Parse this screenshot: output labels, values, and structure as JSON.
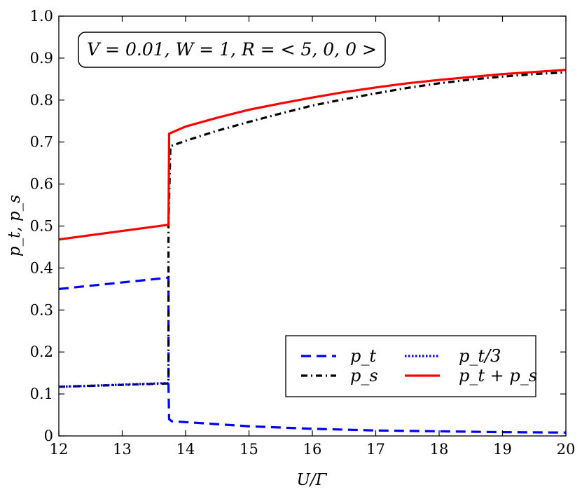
{
  "chart_data": {
    "type": "line",
    "xlabel": "U/Γ",
    "ylabel": "p_t, p_s",
    "xlim": [
      12,
      20
    ],
    "ylim": [
      0,
      1.0
    ],
    "xticks": [
      12,
      13,
      14,
      15,
      16,
      17,
      18,
      19,
      20
    ],
    "yticks": [
      0,
      0.1,
      0.2,
      0.3,
      0.4,
      0.5,
      0.6,
      0.7,
      0.8,
      0.9,
      1.0
    ],
    "ytick_labels": [
      "0",
      "0.1",
      "0.2",
      "0.3",
      "0.4",
      "0.5",
      "0.6",
      "0.7",
      "0.8",
      "0.9",
      "1.0"
    ],
    "annotation": "V = 0.01, W = 1, R = < 5, 0, 0 >",
    "legend_position": "lower-right",
    "grid": false,
    "series": [
      {
        "name": "p_t",
        "style": "dashed",
        "color": "#0000ff",
        "points": [
          [
            12,
            0.35
          ],
          [
            13.73,
            0.377
          ],
          [
            13.73,
            0.12
          ],
          [
            13.74,
            0.04
          ],
          [
            13.78,
            0.035
          ],
          [
            14.5,
            0.028
          ],
          [
            15,
            0.023
          ],
          [
            16,
            0.017
          ],
          [
            17,
            0.013
          ],
          [
            18,
            0.011
          ],
          [
            19,
            0.009
          ],
          [
            20,
            0.008
          ]
        ]
      },
      {
        "name": "p_s",
        "style": "dashdot",
        "color": "#000000",
        "points": [
          [
            12,
            0.117
          ],
          [
            13.73,
            0.125
          ],
          [
            13.73,
            0.5
          ],
          [
            13.76,
            0.69
          ],
          [
            14,
            0.703
          ],
          [
            14.5,
            0.727
          ],
          [
            15,
            0.748
          ],
          [
            15.5,
            0.768
          ],
          [
            16,
            0.787
          ],
          [
            16.5,
            0.802
          ],
          [
            17,
            0.816
          ],
          [
            17.5,
            0.829
          ],
          [
            18,
            0.84
          ],
          [
            18.5,
            0.849
          ],
          [
            19,
            0.856
          ],
          [
            19.5,
            0.862
          ],
          [
            20,
            0.866
          ]
        ]
      },
      {
        "name": "p_t/3",
        "style": "dotted",
        "color": "#0000ff",
        "points": [
          [
            12,
            0.117
          ],
          [
            13.73,
            0.126
          ]
        ]
      },
      {
        "name": "p_t + p_s",
        "style": "solid",
        "color": "#ff0000",
        "points": [
          [
            12,
            0.468
          ],
          [
            13.73,
            0.503
          ],
          [
            13.74,
            0.72
          ],
          [
            14,
            0.737
          ],
          [
            14.5,
            0.758
          ],
          [
            15,
            0.777
          ],
          [
            15.5,
            0.792
          ],
          [
            16,
            0.806
          ],
          [
            16.5,
            0.819
          ],
          [
            17,
            0.83
          ],
          [
            17.5,
            0.84
          ],
          [
            18,
            0.848
          ],
          [
            18.5,
            0.855
          ],
          [
            19,
            0.862
          ],
          [
            19.5,
            0.867
          ],
          [
            20,
            0.872
          ]
        ]
      }
    ]
  }
}
